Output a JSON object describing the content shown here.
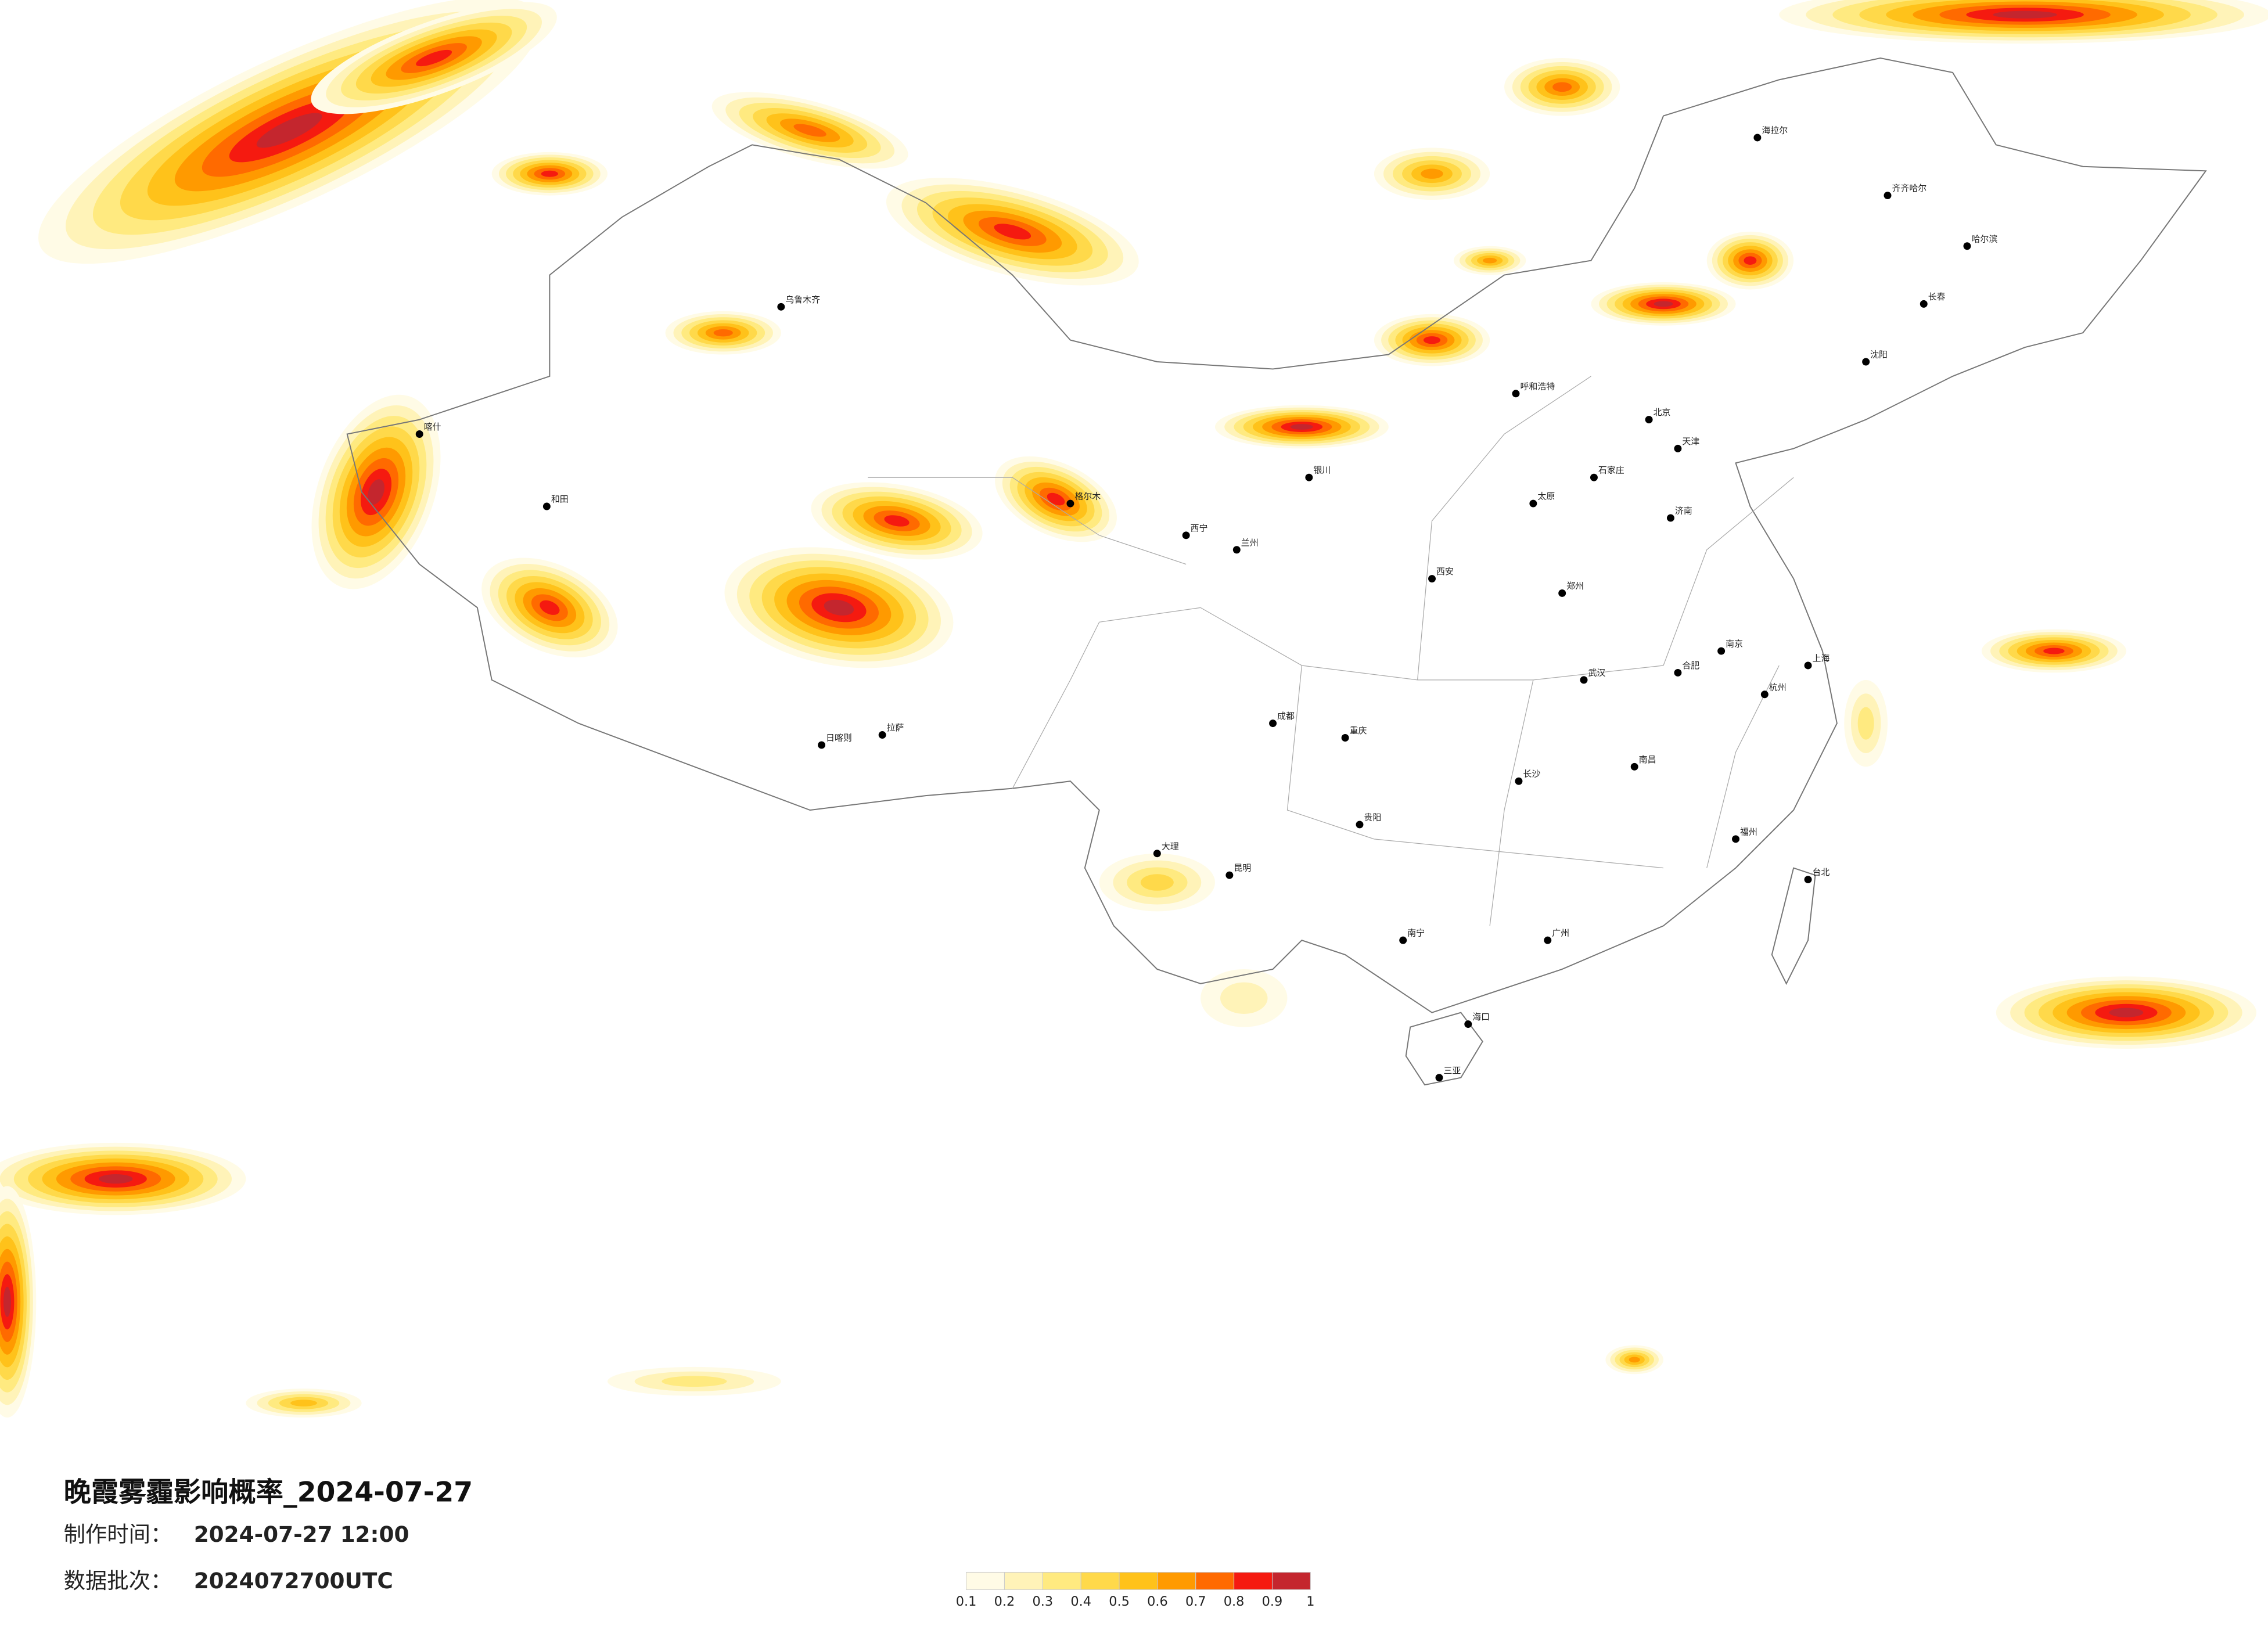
{
  "header": {
    "title": "晚霞雾霾影响概率_2024-07-27",
    "made_label": "制作时间：",
    "made_value": "2024-07-27 12:00",
    "batch_label": "数据批次：",
    "batch_value": "2024072700UTC"
  },
  "legend": {
    "colors": [
      "#fffbe6",
      "#fff3b8",
      "#ffea80",
      "#ffd94a",
      "#ffc21a",
      "#ff9a00",
      "#ff6a00",
      "#f51a10",
      "#c4262e"
    ],
    "ticks": [
      0.1,
      0.2,
      0.3,
      0.4,
      0.5,
      0.6,
      0.7,
      0.8,
      0.9,
      1
    ]
  },
  "cities": [
    "北京",
    "天津",
    "石家庄",
    "太原",
    "呼和浩特",
    "济南",
    "郑州",
    "西安",
    "兰州",
    "西宁",
    "银川",
    "乌鲁木齐",
    "拉萨",
    "成都",
    "重庆",
    "贵阳",
    "昆明",
    "南宁",
    "广州",
    "海口",
    "长沙",
    "武汉",
    "南昌",
    "福州",
    "杭州",
    "上海",
    "南京",
    "合肥",
    "沈阳",
    "长春",
    "哈尔滨",
    "台北",
    "喀什",
    "和田",
    "海拉尔",
    "齐齐哈尔",
    "大理",
    "日喀则",
    "格尔木",
    "三亚"
  ]
}
